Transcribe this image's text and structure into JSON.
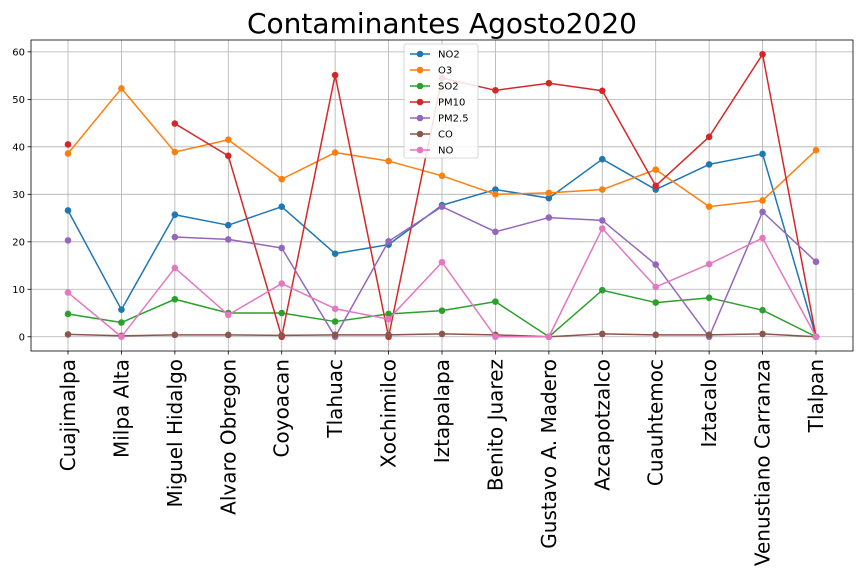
{
  "chart_data": {
    "type": "line",
    "title": "Contaminantes Agosto2020",
    "xlabel": "",
    "ylabel": "",
    "ylim": [
      -3,
      62.5
    ],
    "yticks": [
      0,
      10,
      20,
      30,
      40,
      50,
      60
    ],
    "grid": true,
    "legend_position": "top-center",
    "categories": [
      "Cuajimalpa",
      "Milpa Alta",
      "Miguel Hidalgo",
      "Alvaro Obregon",
      "Coyoacan",
      "Tlahuac",
      "Xochimilco",
      "Iztapalapa",
      "Benito Juarez",
      "Gustavo A. Madero",
      "Azcapotzalco",
      "Cuauhtemoc",
      "Iztacalco",
      "Venustiano Carranza",
      "Tlalpan"
    ],
    "series": [
      {
        "name": "NO2",
        "color": "#1f77b4",
        "values": [
          26.6,
          5.7,
          25.7,
          23.5,
          27.4,
          17.5,
          19.4,
          27.7,
          31.0,
          29.2,
          37.4,
          31.0,
          36.3,
          38.5,
          0.0
        ]
      },
      {
        "name": "O3",
        "color": "#ff7f0e",
        "values": [
          38.6,
          52.3,
          38.9,
          41.5,
          33.2,
          38.8,
          37.0,
          33.9,
          30.0,
          30.3,
          31.0,
          35.2,
          27.4,
          28.7,
          39.3
        ]
      },
      {
        "name": "SO2",
        "color": "#2ca02c",
        "values": [
          4.8,
          3.0,
          7.9,
          5.0,
          5.0,
          3.2,
          4.8,
          5.5,
          7.4,
          0.0,
          9.8,
          7.2,
          8.2,
          5.6,
          0.0
        ]
      },
      {
        "name": "PM10",
        "color": "#d62728",
        "values": [
          40.5,
          null,
          44.9,
          38.1,
          0.0,
          55.1,
          0.0,
          54.5,
          51.9,
          53.4,
          51.8,
          31.8,
          42.1,
          59.5,
          0.0
        ]
      },
      {
        "name": "PM2.5",
        "color": "#9467bd",
        "values": [
          20.3,
          null,
          21.0,
          20.5,
          18.7,
          0.0,
          20.1,
          27.4,
          22.1,
          25.1,
          24.5,
          15.2,
          0.0,
          26.3,
          15.8
        ]
      },
      {
        "name": "CO",
        "color": "#8c564b",
        "values": [
          0.5,
          0.2,
          0.4,
          0.4,
          0.3,
          0.4,
          0.4,
          0.6,
          0.4,
          0.0,
          0.6,
          0.4,
          0.4,
          0.6,
          0.0
        ]
      },
      {
        "name": "NO",
        "color": "#e377c2",
        "values": [
          9.3,
          0.0,
          14.5,
          4.6,
          11.2,
          5.9,
          3.7,
          15.7,
          0.0,
          0.0,
          22.8,
          10.5,
          15.3,
          20.8,
          0.0
        ]
      }
    ]
  }
}
